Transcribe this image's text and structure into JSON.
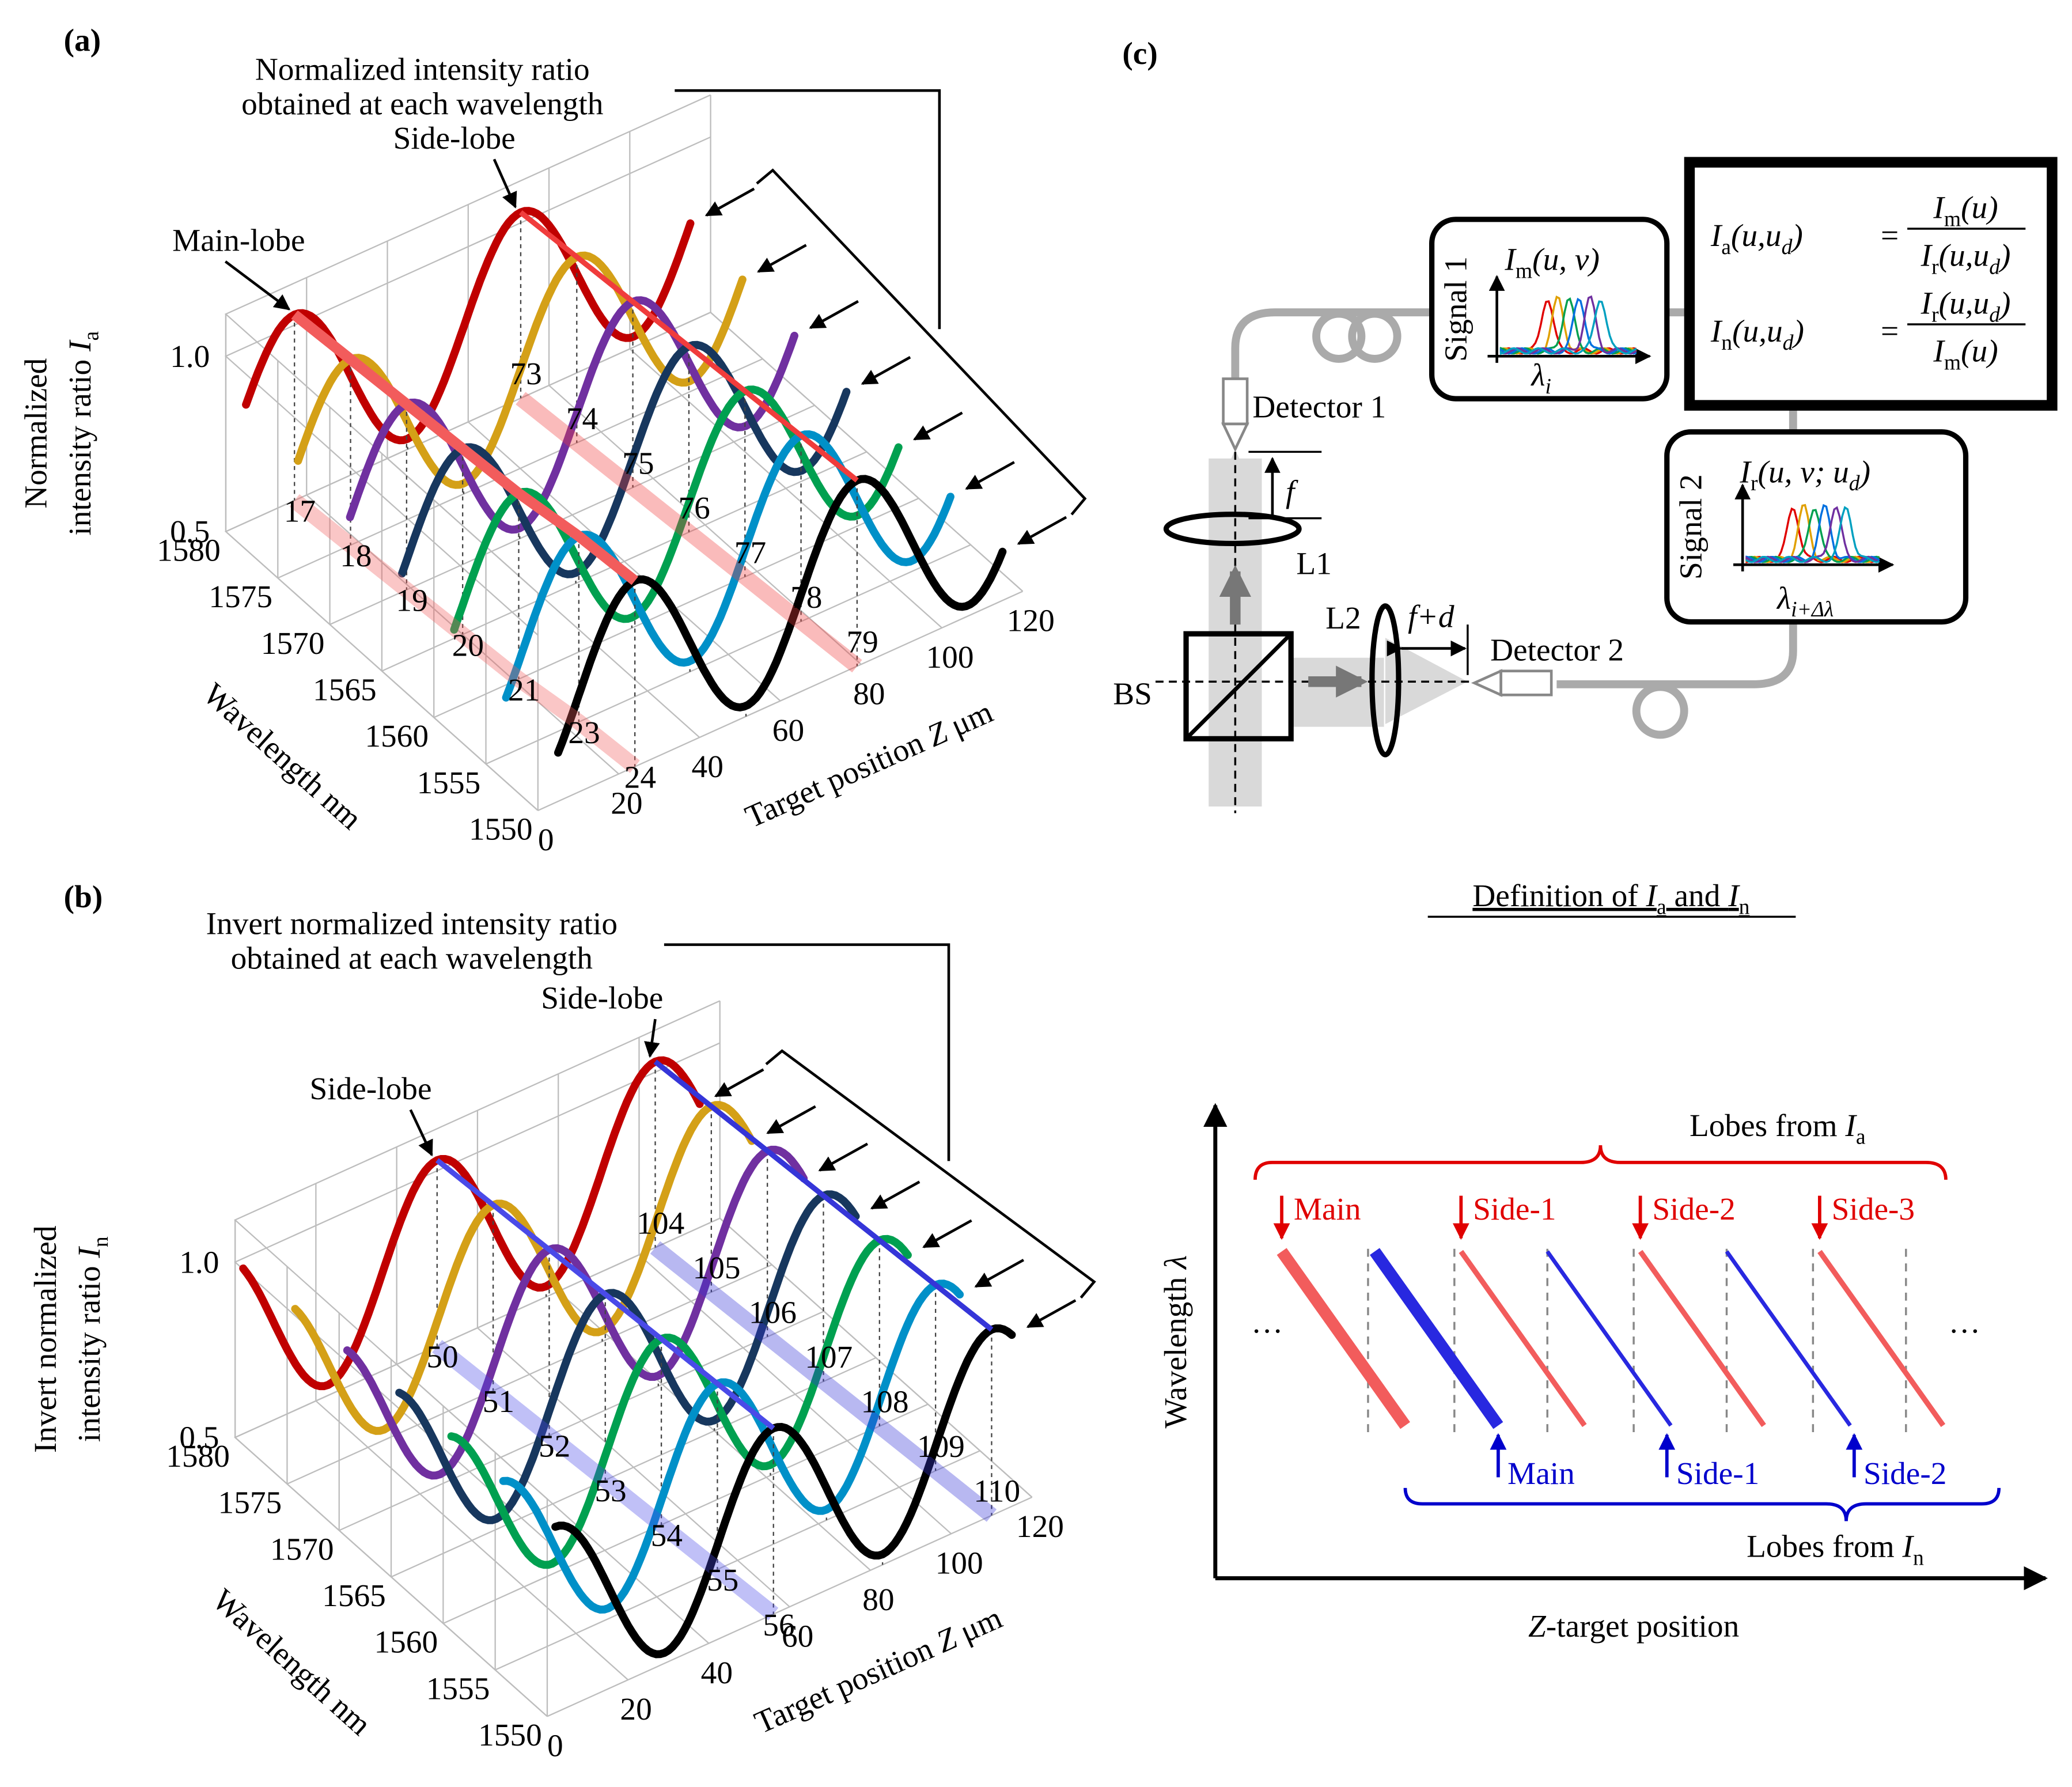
{
  "panel_a": {
    "label": "(a)",
    "title": [
      "Normalized intensity ratio",
      "obtained at each wavelength"
    ],
    "y_label": [
      "Normalized",
      "intensity ratio ",
      "I",
      "a"
    ],
    "y_ticks": [
      "1.0",
      "0.5"
    ],
    "wavelength_ticks": [
      "1580",
      "1575",
      "1570",
      "1565",
      "1560",
      "1555",
      "1550"
    ],
    "wavelength_label": "Wavelength nm",
    "z_ticks": [
      "0",
      "20",
      "40",
      "60",
      "80",
      "100",
      "120"
    ],
    "z_label": [
      "Target position ",
      "Z",
      " μm"
    ],
    "annotations": [
      "Main-lobe",
      "Side-lobe"
    ],
    "first_lobe": [
      "17",
      "18",
      "19",
      "20",
      "21",
      "23",
      "24"
    ],
    "second_lobe": [
      "73",
      "74",
      "75",
      "76",
      "77",
      "78",
      "79"
    ],
    "curve_colors": [
      "#c00000",
      "#d4a017",
      "#7030a0",
      "#17375e",
      "#00a050",
      "#0090c8",
      "#000000"
    ],
    "lobe_colors": [
      "#f25c5c",
      "#f03c3c"
    ]
  },
  "panel_b": {
    "label": "(b)",
    "title": [
      "Invert normalized intensity ratio",
      "obtained at each wavelength"
    ],
    "y_label": [
      "Invert normalized",
      "intensity ratio ",
      "I",
      "n"
    ],
    "y_ticks": [
      "1.0",
      "0.5"
    ],
    "wavelength_ticks": [
      "1580",
      "1575",
      "1570",
      "1565",
      "1560",
      "1555",
      "1550"
    ],
    "wavelength_label": "Wavelength  nm",
    "z_ticks": [
      "0",
      "20",
      "40",
      "60",
      "80",
      "100",
      "120"
    ],
    "z_label": [
      "Target position ",
      "Z",
      " μm"
    ],
    "annotations": [
      "Side-lobe",
      "Side-lobe"
    ],
    "first_lobe": [
      "50",
      "51",
      "52",
      "53",
      "54",
      "55",
      "56"
    ],
    "second_lobe": [
      "104",
      "105",
      "106",
      "107",
      "108",
      "109",
      "110"
    ],
    "curve_colors": [
      "#c00000",
      "#d4a017",
      "#7030a0",
      "#17375e",
      "#00a050",
      "#0090c8",
      "#000000"
    ],
    "lobe_colors": [
      "#4a4ae8",
      "#3535d8"
    ]
  },
  "panel_c": {
    "label": "(c)",
    "detector_1": "Detector 1",
    "detector_2": "Detector 2",
    "lens_1": "L1",
    "lens_2": "L2",
    "beam_splitter": "BS",
    "focal": "f",
    "focal_shift": "f+d",
    "signal_1": {
      "label": "Signal 1",
      "y": [
        "I",
        "m",
        "(u, v)"
      ],
      "x": [
        "λ",
        "i"
      ]
    },
    "signal_2": {
      "label": "Signal 2",
      "y": [
        "I",
        "r",
        "(u, v; u",
        "d",
        ")"
      ],
      "x": [
        "λ",
        "i+Δλ"
      ]
    },
    "eq_a": {
      "lhs": [
        "I",
        "a",
        "(u,u",
        "d",
        ")"
      ],
      "equals": "=",
      "numerator": [
        "I",
        "m",
        "(u)"
      ],
      "denominator": [
        "I",
        "r",
        "(u,u",
        "d",
        ")"
      ]
    },
    "eq_n": {
      "lhs": [
        "I",
        "n",
        "(u,u",
        "d",
        ")"
      ],
      "equals": "=",
      "numerator": [
        "I",
        "r",
        "(u,u",
        "d",
        ")"
      ],
      "denominator": [
        "I",
        "m",
        "(u)"
      ]
    },
    "caption": [
      "Definition of ",
      "I",
      "a",
      " and ",
      "I",
      "n"
    ]
  },
  "lobe_diagram": {
    "y_label": [
      "Wavelength ",
      "λ"
    ],
    "x_label": [
      "Z",
      "-target position"
    ],
    "ia_group": [
      "Lobes from ",
      "I",
      "a"
    ],
    "in_group": [
      "Lobes from ",
      "I",
      "n"
    ],
    "ia_lobes": [
      "Main",
      "Side-1",
      "Side-2",
      "Side-3"
    ],
    "in_lobes": [
      "Main",
      "Side-1",
      "Side-2"
    ],
    "ellipsis": [
      "…",
      "…"
    ]
  }
}
